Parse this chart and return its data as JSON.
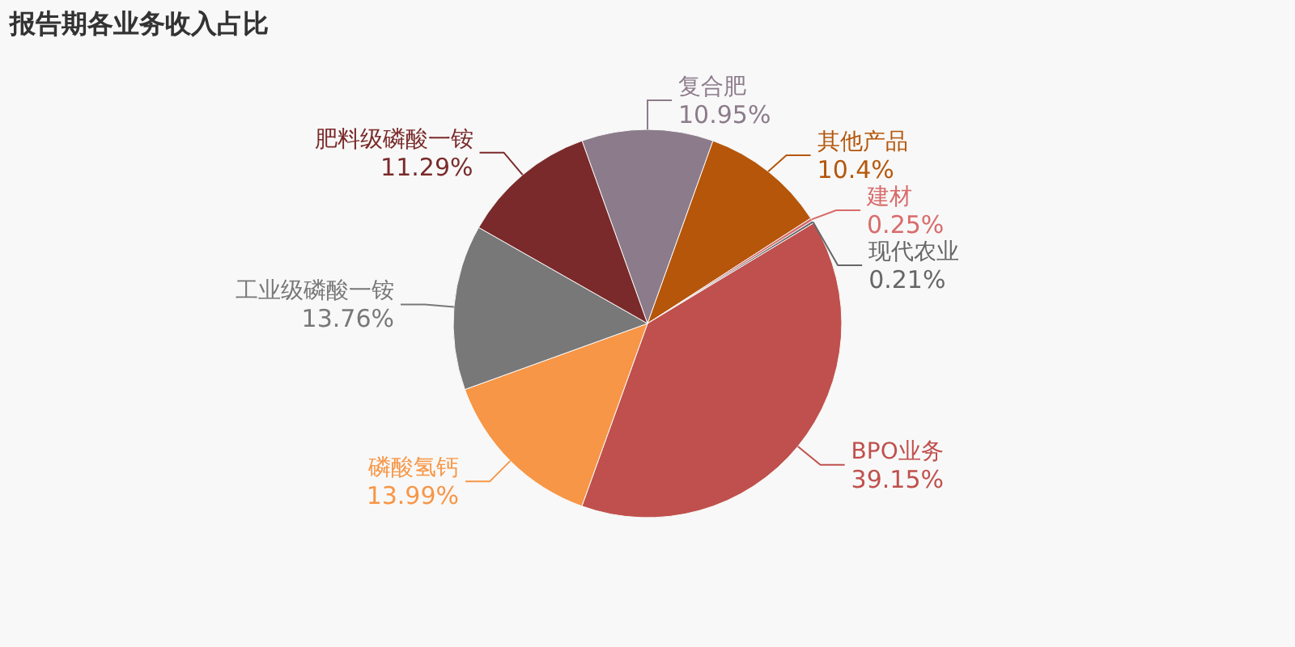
{
  "chart_data": {
    "type": "pie",
    "title": "报告期各业务收入占比",
    "categories": [
      "复合肥",
      "其他产品",
      "建材",
      "现代农业",
      "BPO业务",
      "磷酸氢钙",
      "工业级磷酸一铵",
      "肥料级磷酸一铵"
    ],
    "values": [
      10.95,
      10.4,
      0.25,
      0.21,
      39.15,
      13.99,
      13.76,
      11.29
    ],
    "colors": [
      "#8c7b8a",
      "#b5560a",
      "#d96b6b",
      "#666666",
      "#c0504d",
      "#f79646",
      "#787878",
      "#7a2a2a"
    ],
    "value_labels": [
      "10.95%",
      "10.4%",
      "0.25%",
      "0.21%",
      "39.15%",
      "13.99%",
      "13.76%",
      "11.29%"
    ]
  }
}
